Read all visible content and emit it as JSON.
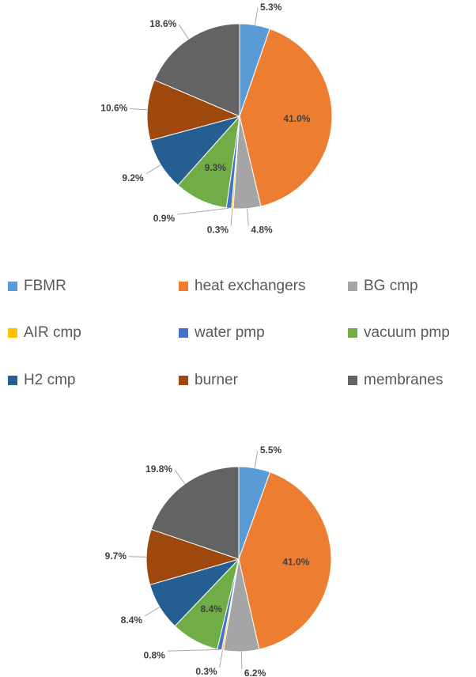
{
  "chart_data": [
    {
      "type": "pie",
      "categories": [
        "FBMR",
        "heat exchangers",
        "BG cmp",
        "AIR cmp",
        "water pmp",
        "vacuum pmp",
        "H2 cmp",
        "burner",
        "membranes"
      ],
      "colors": [
        "#5b9bd5",
        "#ed7d31",
        "#a5a5a5",
        "#ffc000",
        "#4472c4",
        "#70ad47",
        "#255e91",
        "#9e480e",
        "#636363"
      ],
      "values": [
        5.3,
        41.0,
        4.8,
        0.3,
        0.9,
        9.3,
        9.2,
        10.6,
        18.6
      ],
      "value_labels": [
        "5.3%",
        "41.0%",
        "4.8%",
        "0.3%",
        "0.9%",
        "9.3%",
        "9.2%",
        "10.6%",
        "18.6%"
      ]
    },
    {
      "type": "pie",
      "values": [
        5.5,
        41.0,
        6.2,
        0.3,
        0.8,
        8.4,
        8.4,
        9.7,
        19.8
      ],
      "value_labels": [
        "5.5%",
        "41.0%",
        "6.2%",
        "0.3%",
        "0.8%",
        "8.4%",
        "8.4%",
        "9.7%",
        "19.8%"
      ]
    }
  ]
}
